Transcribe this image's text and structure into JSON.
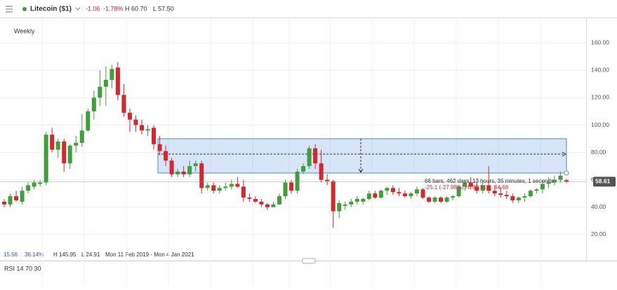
{
  "header": {
    "symbol": "Litecoin ($1)",
    "change": "-1.06",
    "change_pct": "-1.78%",
    "high": "H 60.70",
    "low": "L 57.50"
  },
  "chart_data": {
    "type": "candlestick",
    "title": "Weekly",
    "ohlc": [
      [
        44,
        46,
        40,
        42
      ],
      [
        42,
        50,
        40,
        48
      ],
      [
        48,
        52,
        44,
        45
      ],
      [
        44,
        55,
        42,
        52
      ],
      [
        52,
        58,
        50,
        56
      ],
      [
        55,
        60,
        53,
        58
      ],
      [
        57,
        60,
        55,
        58
      ],
      [
        58,
        95,
        56,
        93
      ],
      [
        93,
        98,
        80,
        82
      ],
      [
        82,
        90,
        76,
        88
      ],
      [
        88,
        90,
        66,
        72
      ],
      [
        72,
        86,
        68,
        85
      ],
      [
        85,
        92,
        80,
        87
      ],
      [
        87,
        108,
        84,
        96
      ],
      [
        96,
        112,
        95,
        110
      ],
      [
        110,
        125,
        104,
        120
      ],
      [
        120,
        140,
        114,
        128
      ],
      [
        128,
        143,
        114,
        133
      ],
      [
        133,
        144,
        127,
        141
      ],
      [
        142,
        146,
        118,
        122
      ],
      [
        122,
        130,
        106,
        109
      ],
      [
        109,
        112,
        95,
        104
      ],
      [
        104,
        107,
        95,
        100
      ],
      [
        100,
        104,
        93,
        96
      ],
      [
        96,
        100,
        92,
        97
      ],
      [
        98,
        100,
        82,
        86
      ],
      [
        86,
        92,
        78,
        81
      ],
      [
        81,
        85,
        70,
        74
      ],
      [
        74,
        76,
        62,
        64
      ],
      [
        64,
        68,
        62,
        66
      ],
      [
        66,
        70,
        62,
        64
      ],
      [
        64,
        74,
        62,
        70
      ],
      [
        70,
        74,
        66,
        72
      ],
      [
        72,
        74,
        50,
        54
      ],
      [
        54,
        58,
        52,
        56
      ],
      [
        56,
        58,
        50,
        52
      ],
      [
        52,
        56,
        50,
        54
      ],
      [
        54,
        58,
        52,
        55
      ],
      [
        55,
        60,
        53,
        57
      ],
      [
        57,
        62,
        54,
        55
      ],
      [
        55,
        60,
        44,
        47
      ],
      [
        47,
        50,
        44,
        46
      ],
      [
        46,
        48,
        43,
        44
      ],
      [
        44,
        46,
        40,
        42
      ],
      [
        42,
        43,
        38,
        40
      ],
      [
        40,
        44,
        40,
        42
      ],
      [
        42,
        50,
        42,
        48
      ],
      [
        48,
        60,
        46,
        58
      ],
      [
        58,
        60,
        50,
        52
      ],
      [
        52,
        68,
        50,
        66
      ],
      [
        66,
        72,
        64,
        70
      ],
      [
        70,
        85,
        68,
        83
      ],
      [
        83,
        86,
        68,
        72
      ],
      [
        72,
        82,
        58,
        60
      ],
      [
        60,
        64,
        56,
        59
      ],
      [
        59,
        60,
        25,
        37
      ],
      [
        37,
        45,
        32,
        43
      ],
      [
        41,
        44,
        38,
        42
      ],
      [
        42,
        46,
        40,
        44
      ],
      [
        44,
        48,
        42,
        46
      ],
      [
        44,
        47,
        42,
        46
      ],
      [
        46,
        52,
        45,
        50
      ],
      [
        50,
        52,
        46,
        47
      ],
      [
        47,
        53,
        46,
        52
      ],
      [
        52,
        55,
        49,
        54
      ],
      [
        54,
        56,
        49,
        51
      ],
      [
        51,
        54,
        48,
        50
      ],
      [
        50,
        52,
        47,
        48
      ],
      [
        48,
        51,
        46,
        50
      ],
      [
        50,
        55,
        48,
        53
      ],
      [
        53,
        54,
        46,
        47
      ],
      [
        47,
        48,
        43,
        44
      ],
      [
        44,
        48,
        43,
        47
      ],
      [
        47,
        48,
        43,
        44
      ],
      [
        44,
        48,
        43,
        47
      ],
      [
        47,
        49,
        45,
        48
      ],
      [
        48,
        56,
        47,
        55
      ],
      [
        55,
        60,
        52,
        58
      ],
      [
        58,
        62,
        53,
        55
      ],
      [
        55,
        58,
        50,
        52
      ],
      [
        52,
        60,
        50,
        56
      ],
      [
        56,
        70,
        50,
        52
      ],
      [
        52,
        56,
        48,
        50
      ],
      [
        50,
        55,
        47,
        49
      ],
      [
        49,
        52,
        46,
        48
      ],
      [
        48,
        50,
        43,
        45
      ],
      [
        45,
        48,
        43,
        47
      ],
      [
        47,
        50,
        44,
        48
      ],
      [
        48,
        53,
        47,
        52
      ],
      [
        52,
        54,
        50,
        53
      ],
      [
        53,
        60,
        50,
        57
      ],
      [
        57,
        62,
        54,
        58
      ],
      [
        58,
        63,
        56,
        60
      ],
      [
        60,
        66,
        58,
        63
      ],
      [
        59.67,
        60.7,
        57.5,
        58.61
      ]
    ],
    "up_color": "#3f9f3a",
    "down_color": "#d7262e",
    "ylim": [
      2,
      176
    ],
    "yticks": [
      {
        "value": 20,
        "label": "20.00"
      },
      {
        "value": 40,
        "label": "40.00"
      },
      {
        "value": 60,
        "label": "60.00"
      },
      {
        "value": 80,
        "label": "80.00"
      },
      {
        "value": 100,
        "label": "100.00"
      },
      {
        "value": 120,
        "label": "120.00"
      },
      {
        "value": 140,
        "label": "140.00"
      },
      {
        "value": 160,
        "label": "160.00"
      }
    ],
    "price_label": "58.61",
    "measure": {
      "line1": "66 bars, 462 days, 13 hours, 35 minutes, 1 seconds",
      "line2": "-25.1 (-27.98%)  H: 89.81  L: 64.68"
    },
    "footer": {
      "last": "15.56",
      "pct": "36.14%",
      "high": "H 145.95",
      "low": "L 24.91",
      "range": "Mon 11 Feb 2019 - Mon 4 Jan 2021"
    },
    "indicator": "RSI 14 70 30"
  }
}
